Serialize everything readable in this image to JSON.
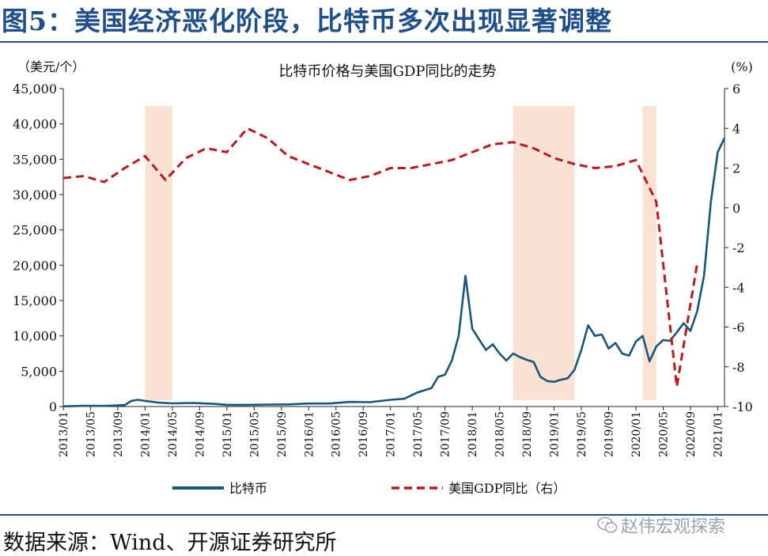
{
  "header": {
    "title": "图5：美国经济恶化阶段，比特币多次出现显著调整"
  },
  "footer": {
    "source": "数据来源：Wind、开源证券研究所",
    "watermark": "赵伟宏观探索"
  },
  "colors": {
    "btc": "#17577e",
    "gdp": "#c0171e",
    "shade": "#f8dccb",
    "title": "#1f4e8c"
  },
  "chart_data": {
    "type": "line",
    "title": "比特币价格与美国GDP同比的走势",
    "y_left_unit": "（美元/个）",
    "y_right_unit": "(%)",
    "y_left": {
      "min": 0,
      "max": 45000,
      "ticks": [
        "0",
        "5,000",
        "10,000",
        "15,000",
        "20,000",
        "25,000",
        "30,000",
        "35,000",
        "40,000",
        "45,000"
      ]
    },
    "y_right": {
      "min": -10,
      "max": 6,
      "ticks": [
        "-10",
        "-8",
        "-6",
        "-4",
        "-2",
        "0",
        "2",
        "4",
        "6"
      ]
    },
    "x_ticks": [
      "2013/01",
      "2013/05",
      "2013/09",
      "2014/01",
      "2014/05",
      "2014/09",
      "2015/01",
      "2015/05",
      "2015/09",
      "2016/01",
      "2016/05",
      "2016/09",
      "2017/01",
      "2017/05",
      "2017/09",
      "2018/01",
      "2018/05",
      "2018/09",
      "2019/01",
      "2019/05",
      "2019/09",
      "2020/01",
      "2020/05",
      "2020/09",
      "2021/01"
    ],
    "x_range": [
      "2013/01",
      "2021/02"
    ],
    "legend": {
      "position": "bottom",
      "btc": "比特币",
      "gdp": "美国GDP同比（右）"
    },
    "shaded_periods": [
      {
        "start": "2014/01",
        "end": "2014/05"
      },
      {
        "start": "2018/07",
        "end": "2019/04"
      },
      {
        "start": "2020/02",
        "end": "2020/04"
      }
    ],
    "series": [
      {
        "name": "比特币",
        "axis": "left",
        "x": [
          "2013/01",
          "2013/04",
          "2013/07",
          "2013/10",
          "2013/11",
          "2013/12",
          "2014/01",
          "2014/03",
          "2014/05",
          "2014/08",
          "2014/11",
          "2015/01",
          "2015/04",
          "2015/07",
          "2015/10",
          "2016/01",
          "2016/04",
          "2016/07",
          "2016/10",
          "2017/01",
          "2017/03",
          "2017/05",
          "2017/07",
          "2017/08",
          "2017/09",
          "2017/10",
          "2017/11",
          "2017/12",
          "2018/01",
          "2018/02",
          "2018/03",
          "2018/04",
          "2018/05",
          "2018/06",
          "2018/07",
          "2018/08",
          "2018/09",
          "2018/10",
          "2018/11",
          "2018/12",
          "2019/01",
          "2019/02",
          "2019/03",
          "2019/04",
          "2019/05",
          "2019/06",
          "2019/07",
          "2019/08",
          "2019/09",
          "2019/10",
          "2019/11",
          "2019/12",
          "2020/01",
          "2020/02",
          "2020/03",
          "2020/04",
          "2020/05",
          "2020/06",
          "2020/07",
          "2020/08",
          "2020/09",
          "2020/10",
          "2020/11",
          "2020/12",
          "2021/01",
          "2021/02"
        ],
        "values": [
          20,
          100,
          90,
          200,
          800,
          950,
          800,
          550,
          450,
          500,
          380,
          250,
          240,
          280,
          300,
          420,
          420,
          650,
          620,
          950,
          1100,
          2000,
          2600,
          4200,
          4500,
          6500,
          10000,
          18500,
          11000,
          9500,
          8000,
          8800,
          7500,
          6500,
          7500,
          7000,
          6600,
          6300,
          4200,
          3600,
          3500,
          3800,
          4000,
          5200,
          8000,
          11500,
          10000,
          10200,
          8200,
          9000,
          7500,
          7200,
          9200,
          10000,
          6400,
          8500,
          9400,
          9300,
          10500,
          11800,
          10700,
          13500,
          18500,
          29000,
          36000,
          38000
        ]
      },
      {
        "name": "美国GDP同比（右）",
        "axis": "right",
        "x": [
          "2013/01",
          "2013/04",
          "2013/07",
          "2013/10",
          "2014/01",
          "2014/04",
          "2014/07",
          "2014/10",
          "2015/01",
          "2015/04",
          "2015/07",
          "2015/10",
          "2016/01",
          "2016/04",
          "2016/07",
          "2016/10",
          "2017/01",
          "2017/04",
          "2017/07",
          "2017/10",
          "2018/01",
          "2018/04",
          "2018/07",
          "2018/10",
          "2019/01",
          "2019/04",
          "2019/07",
          "2019/10",
          "2020/01",
          "2020/04",
          "2020/07",
          "2020/10"
        ],
        "values": [
          1.5,
          1.6,
          1.3,
          2.0,
          2.6,
          1.4,
          2.5,
          3.0,
          2.8,
          4.0,
          3.5,
          2.6,
          2.2,
          1.8,
          1.4,
          1.6,
          2.0,
          2.0,
          2.2,
          2.4,
          2.8,
          3.2,
          3.3,
          3.0,
          2.5,
          2.2,
          2.0,
          2.1,
          2.4,
          0.3,
          -9.0,
          -2.8
        ]
      }
    ]
  }
}
